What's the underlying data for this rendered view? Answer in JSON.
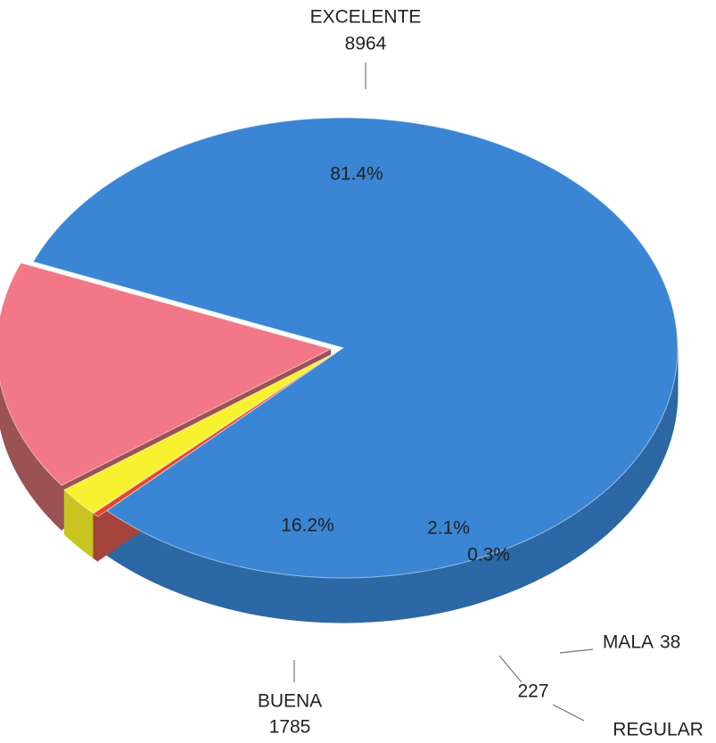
{
  "chart_data": {
    "type": "pie3d",
    "categories": [
      "EXCELENTE",
      "BUENA",
      "REGULAR",
      "MALA"
    ],
    "counts": [
      8964,
      1785,
      227,
      38
    ],
    "values": [
      81.4,
      16.2,
      2.1,
      0.3
    ],
    "value_labels": [
      "81.4%",
      "16.2%",
      "2.1%",
      "0.3%"
    ],
    "colors": [
      "#3a86d4",
      "#f27787",
      "#f7f230",
      "#e2482a"
    ],
    "side_colors": [
      "#2c67a6",
      "#9a5252",
      "#c9c624",
      "#a3443a"
    ]
  }
}
